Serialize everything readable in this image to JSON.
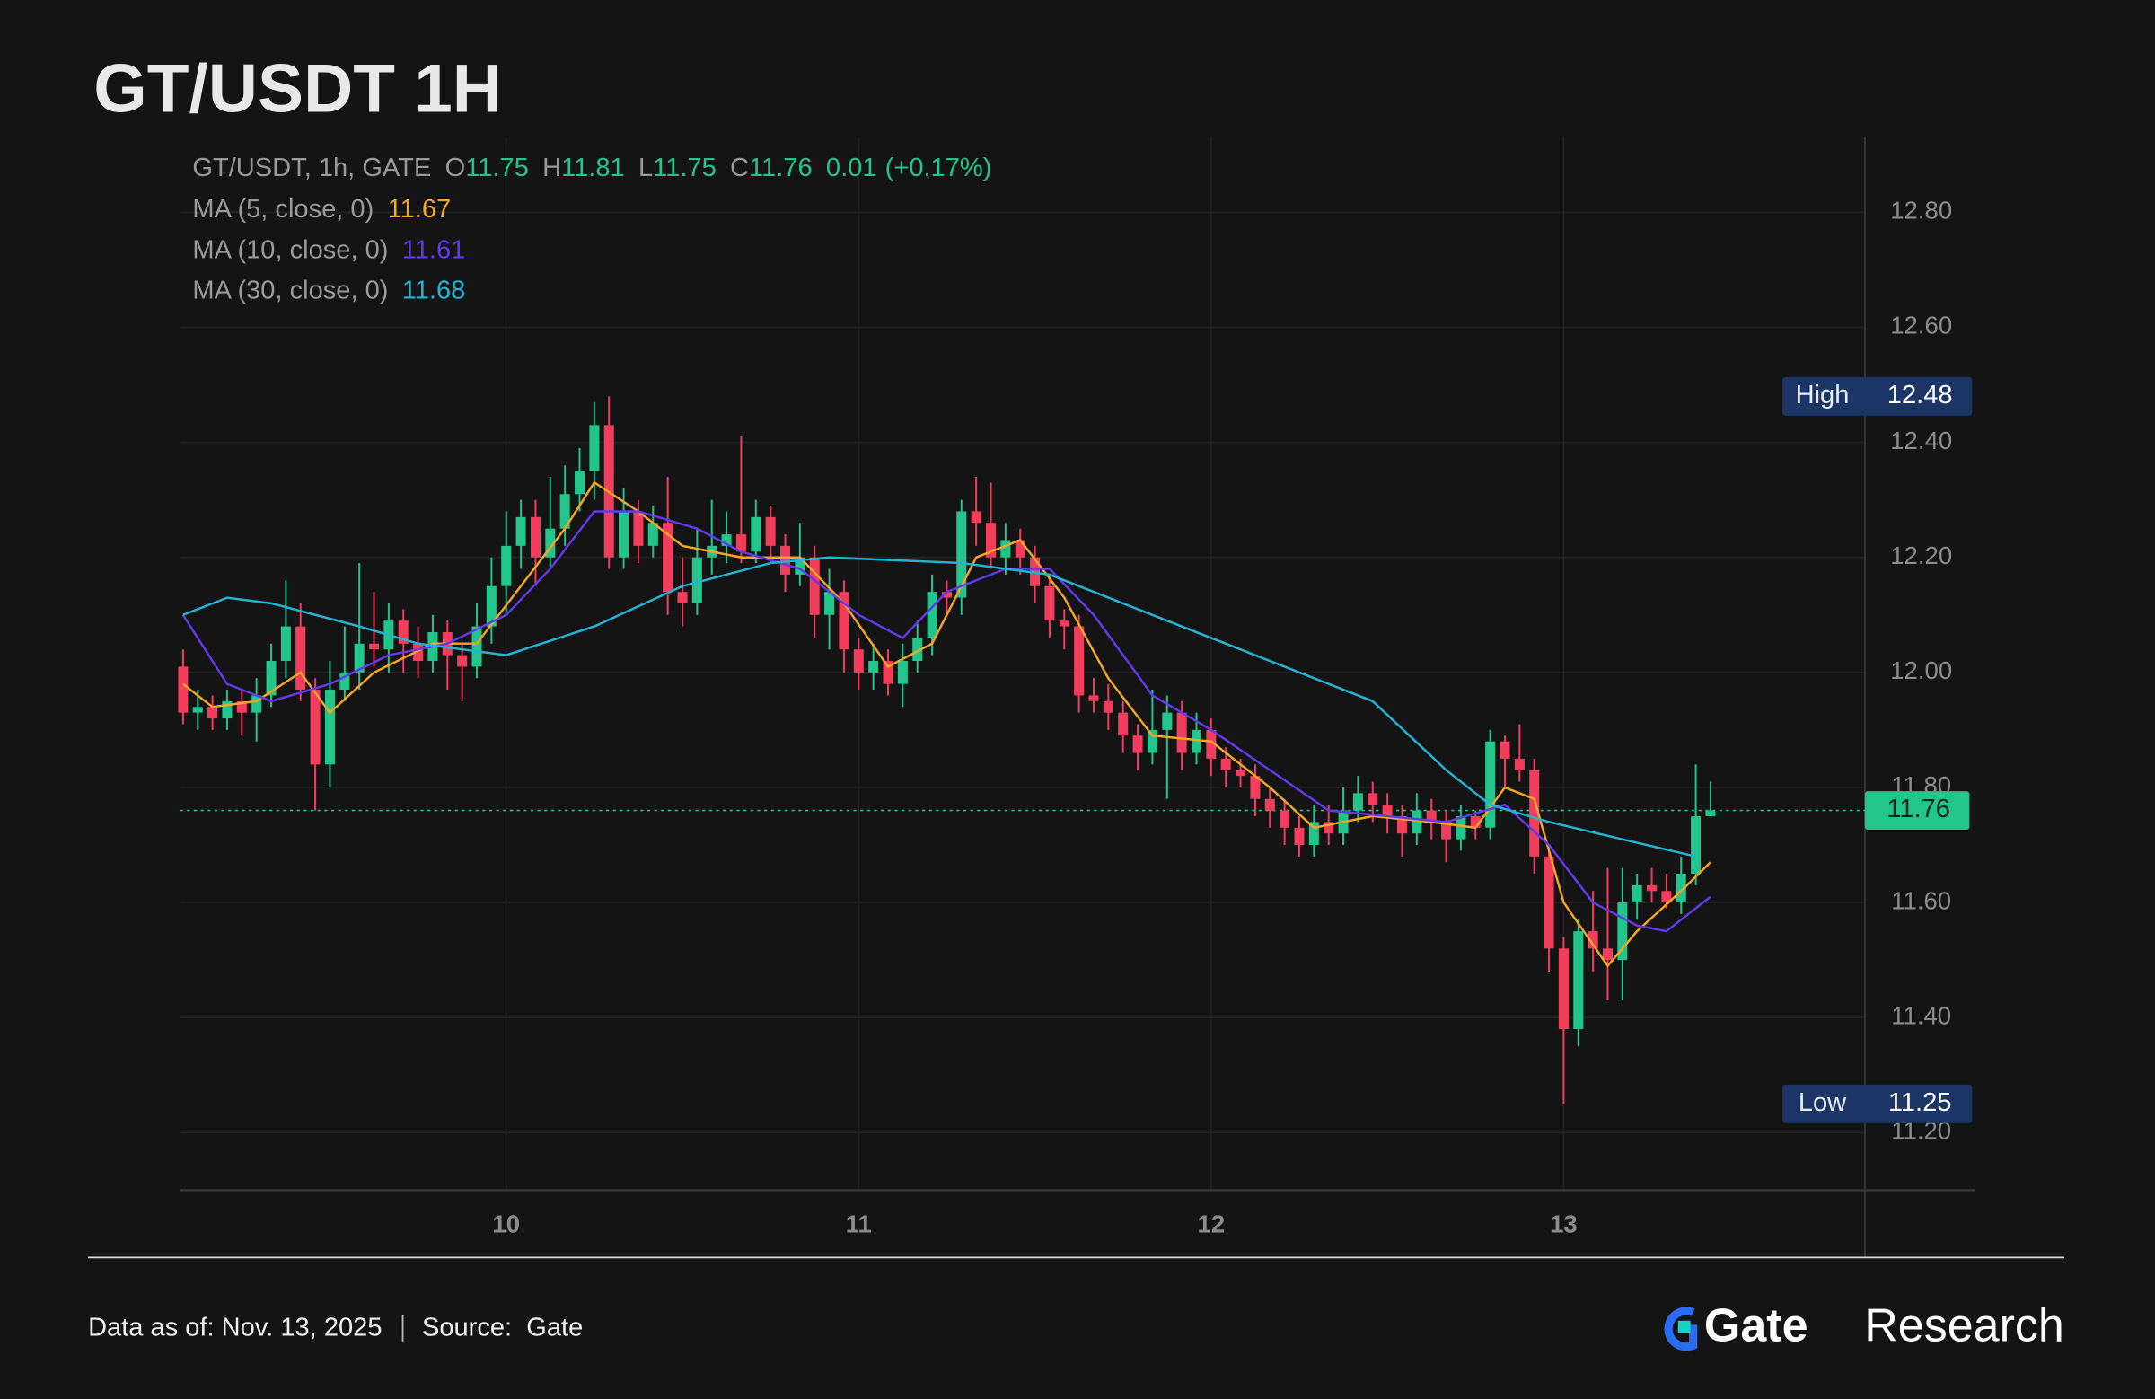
{
  "chart_data": {
    "type": "candlestick",
    "title": "GT/USDT 1H",
    "header": {
      "symbol": "GT/USDT, 1h, GATE",
      "fields": [
        {
          "label": "O",
          "value": 11.75
        },
        {
          "label": "H",
          "value": 11.81
        },
        {
          "label": "L",
          "value": 11.75
        },
        {
          "label": "C",
          "value": 11.76
        }
      ],
      "change": 0.01,
      "change_pct": {
        "value": 0.17,
        "label": "(+0.17%)"
      }
    },
    "up_color": "#22c58b",
    "down_color": "#f23d5c",
    "x": [
      2,
      3,
      4,
      5,
      6,
      7,
      8,
      9,
      10,
      11,
      12,
      13,
      14,
      15,
      16,
      17,
      18,
      19,
      20,
      21,
      22,
      23,
      24,
      25,
      26,
      27,
      28,
      29,
      30,
      31,
      32,
      33,
      34,
      35,
      36,
      37,
      38,
      39,
      40,
      41,
      42,
      43,
      44,
      45,
      46,
      47,
      48,
      49,
      50,
      51,
      52,
      53,
      54,
      55,
      56,
      57,
      58,
      59,
      60,
      61,
      62,
      63,
      64,
      65,
      66,
      67,
      68,
      69,
      70,
      71,
      72,
      73,
      74,
      75,
      76,
      77,
      78,
      79,
      80,
      81,
      82,
      83,
      84,
      85,
      86,
      87,
      88,
      89,
      90,
      91,
      92,
      93,
      94,
      95,
      96,
      97,
      98,
      99,
      100,
      101,
      102,
      103,
      104,
      105,
      106
    ],
    "ohlc": [
      [
        12.01,
        12.04,
        11.91,
        11.93
      ],
      [
        11.93,
        11.97,
        11.9,
        11.94
      ],
      [
        11.94,
        11.96,
        11.9,
        11.92
      ],
      [
        11.92,
        11.97,
        11.9,
        11.95
      ],
      [
        11.95,
        11.97,
        11.89,
        11.93
      ],
      [
        11.93,
        11.99,
        11.88,
        11.96
      ],
      [
        11.96,
        12.05,
        11.94,
        12.02
      ],
      [
        12.02,
        12.16,
        11.99,
        12.08
      ],
      [
        12.08,
        12.12,
        11.95,
        11.97
      ],
      [
        11.97,
        11.99,
        11.76,
        11.84
      ],
      [
        11.84,
        12.02,
        11.8,
        11.97
      ],
      [
        11.97,
        12.08,
        11.95,
        12.0
      ],
      [
        12.0,
        12.19,
        11.97,
        12.05
      ],
      [
        12.05,
        12.14,
        12.01,
        12.04
      ],
      [
        12.04,
        12.12,
        12.0,
        12.09
      ],
      [
        12.09,
        12.11,
        12.0,
        12.05
      ],
      [
        12.05,
        12.08,
        11.99,
        12.02
      ],
      [
        12.02,
        12.1,
        12.0,
        12.07
      ],
      [
        12.07,
        12.09,
        11.97,
        12.03
      ],
      [
        12.03,
        12.05,
        11.95,
        12.01
      ],
      [
        12.01,
        12.12,
        11.99,
        12.08
      ],
      [
        12.08,
        12.2,
        12.05,
        12.15
      ],
      [
        12.15,
        12.28,
        12.1,
        12.22
      ],
      [
        12.22,
        12.3,
        12.18,
        12.27
      ],
      [
        12.27,
        12.3,
        12.15,
        12.2
      ],
      [
        12.2,
        12.34,
        12.18,
        12.25
      ],
      [
        12.25,
        12.36,
        12.22,
        12.31
      ],
      [
        12.31,
        12.39,
        12.28,
        12.35
      ],
      [
        12.35,
        12.47,
        12.3,
        12.43
      ],
      [
        12.43,
        12.48,
        12.18,
        12.2
      ],
      [
        12.2,
        12.32,
        12.18,
        12.28
      ],
      [
        12.28,
        12.3,
        12.19,
        12.22
      ],
      [
        12.22,
        12.29,
        12.2,
        12.26
      ],
      [
        12.26,
        12.34,
        12.1,
        12.14
      ],
      [
        12.14,
        12.2,
        12.08,
        12.12
      ],
      [
        12.12,
        12.25,
        12.1,
        12.2
      ],
      [
        12.2,
        12.3,
        12.17,
        12.22
      ],
      [
        12.22,
        12.28,
        12.19,
        12.24
      ],
      [
        12.24,
        12.41,
        12.19,
        12.21
      ],
      [
        12.21,
        12.3,
        12.19,
        12.27
      ],
      [
        12.27,
        12.29,
        12.19,
        12.22
      ],
      [
        12.22,
        12.24,
        12.14,
        12.17
      ],
      [
        12.17,
        12.26,
        12.15,
        12.2
      ],
      [
        12.2,
        12.22,
        12.06,
        12.1
      ],
      [
        12.1,
        12.18,
        12.04,
        12.14
      ],
      [
        12.14,
        12.16,
        12.0,
        12.04
      ],
      [
        12.04,
        12.06,
        11.97,
        12.0
      ],
      [
        12.0,
        12.05,
        11.97,
        12.02
      ],
      [
        12.02,
        12.04,
        11.96,
        11.98
      ],
      [
        11.98,
        12.05,
        11.94,
        12.02
      ],
      [
        12.02,
        12.09,
        12.0,
        12.06
      ],
      [
        12.06,
        12.17,
        12.03,
        12.14
      ],
      [
        12.14,
        12.16,
        12.1,
        12.13
      ],
      [
        12.13,
        12.3,
        12.1,
        12.28
      ],
      [
        12.28,
        12.34,
        12.22,
        12.26
      ],
      [
        12.26,
        12.33,
        12.18,
        12.2
      ],
      [
        12.2,
        12.26,
        12.17,
        12.23
      ],
      [
        12.23,
        12.25,
        12.17,
        12.2
      ],
      [
        12.2,
        12.22,
        12.12,
        12.15
      ],
      [
        12.15,
        12.17,
        12.06,
        12.09
      ],
      [
        12.09,
        12.11,
        12.04,
        12.08
      ],
      [
        12.08,
        12.1,
        11.93,
        11.96
      ],
      [
        11.96,
        11.99,
        11.93,
        11.95
      ],
      [
        11.95,
        11.98,
        11.9,
        11.93
      ],
      [
        11.93,
        11.95,
        11.86,
        11.89
      ],
      [
        11.89,
        11.91,
        11.83,
        11.86
      ],
      [
        11.86,
        11.97,
        11.84,
        11.9
      ],
      [
        11.9,
        11.96,
        11.78,
        11.93
      ],
      [
        11.93,
        11.95,
        11.83,
        11.86
      ],
      [
        11.86,
        11.93,
        11.84,
        11.9
      ],
      [
        11.9,
        11.92,
        11.82,
        11.85
      ],
      [
        11.85,
        11.87,
        11.8,
        11.83
      ],
      [
        11.83,
        11.85,
        11.8,
        11.82
      ],
      [
        11.82,
        11.84,
        11.75,
        11.78
      ],
      [
        11.78,
        11.8,
        11.73,
        11.76
      ],
      [
        11.76,
        11.78,
        11.7,
        11.73
      ],
      [
        11.73,
        11.75,
        11.68,
        11.7
      ],
      [
        11.7,
        11.77,
        11.68,
        11.74
      ],
      [
        11.74,
        11.77,
        11.7,
        11.72
      ],
      [
        11.72,
        11.8,
        11.7,
        11.76
      ],
      [
        11.76,
        11.82,
        11.74,
        11.79
      ],
      [
        11.79,
        11.81,
        11.74,
        11.77
      ],
      [
        11.77,
        11.79,
        11.72,
        11.75
      ],
      [
        11.75,
        11.77,
        11.68,
        11.72
      ],
      [
        11.72,
        11.79,
        11.7,
        11.76
      ],
      [
        11.76,
        11.78,
        11.71,
        11.74
      ],
      [
        11.74,
        11.76,
        11.67,
        11.71
      ],
      [
        11.71,
        11.77,
        11.69,
        11.75
      ],
      [
        11.75,
        11.76,
        11.71,
        11.73
      ],
      [
        11.73,
        11.9,
        11.71,
        11.88
      ],
      [
        11.88,
        11.89,
        11.8,
        11.85
      ],
      [
        11.85,
        11.91,
        11.81,
        11.83
      ],
      [
        11.83,
        11.85,
        11.65,
        11.68
      ],
      [
        11.68,
        11.7,
        11.48,
        11.52
      ],
      [
        11.52,
        11.54,
        11.25,
        11.38
      ],
      [
        11.38,
        11.57,
        11.35,
        11.55
      ],
      [
        11.55,
        11.62,
        11.48,
        11.52
      ],
      [
        11.52,
        11.66,
        11.43,
        11.5
      ],
      [
        11.5,
        11.66,
        11.43,
        11.6
      ],
      [
        11.6,
        11.65,
        11.57,
        11.63
      ],
      [
        11.63,
        11.66,
        11.6,
        11.62
      ],
      [
        11.62,
        11.65,
        11.59,
        11.6
      ],
      [
        11.6,
        11.68,
        11.58,
        11.65
      ],
      [
        11.65,
        11.84,
        11.63,
        11.75
      ],
      [
        11.75,
        11.81,
        11.75,
        11.76
      ]
    ],
    "series": [
      {
        "name": "MA (5, close, 0)",
        "color": "#f5a623",
        "current": 11.67,
        "x": [
          2,
          4,
          7,
          10,
          12,
          15,
          19,
          22,
          25,
          28,
          30,
          33,
          36,
          40,
          44,
          47,
          50,
          53,
          56,
          59,
          62,
          65,
          68,
          72,
          76,
          79,
          83,
          87,
          90,
          92,
          94,
          96,
          99,
          101,
          104,
          106
        ],
        "values": [
          11.98,
          11.94,
          11.95,
          12.0,
          11.93,
          12.0,
          12.05,
          12.05,
          12.15,
          12.25,
          12.33,
          12.28,
          12.22,
          12.2,
          12.2,
          12.12,
          12.01,
          12.05,
          12.2,
          12.23,
          12.13,
          11.99,
          11.89,
          11.88,
          11.8,
          11.73,
          11.75,
          11.74,
          11.73,
          11.8,
          11.78,
          11.6,
          11.49,
          11.55,
          11.62,
          11.67
        ]
      },
      {
        "name": "MA (10, close, 0)",
        "color": "#6339ea",
        "current": 11.61,
        "x": [
          2,
          5,
          8,
          12,
          16,
          20,
          24,
          27,
          30,
          33,
          37,
          40,
          44,
          48,
          51,
          54,
          58,
          61,
          64,
          68,
          72,
          76,
          80,
          84,
          88,
          92,
          95,
          98,
          101,
          103,
          106
        ],
        "values": [
          12.1,
          11.98,
          11.95,
          11.98,
          12.03,
          12.05,
          12.1,
          12.18,
          12.28,
          12.28,
          12.25,
          12.21,
          12.18,
          12.1,
          12.06,
          12.14,
          12.18,
          12.18,
          12.1,
          11.96,
          11.9,
          11.83,
          11.76,
          11.75,
          11.74,
          11.77,
          11.7,
          11.6,
          11.56,
          11.55,
          11.61
        ]
      },
      {
        "name": "MA (30, close, 0)",
        "color": "#22b5d3",
        "current": 11.68,
        "x": [
          2,
          5,
          8,
          14,
          18,
          24,
          30,
          36,
          42,
          46,
          55,
          61,
          64,
          72,
          79,
          83,
          88,
          91,
          95,
          100,
          105
        ],
        "values": [
          12.1,
          12.13,
          12.12,
          12.08,
          12.05,
          12.03,
          12.08,
          12.15,
          12.19,
          12.2,
          12.19,
          12.17,
          12.14,
          12.06,
          11.99,
          11.95,
          11.83,
          11.77,
          11.74,
          11.71,
          11.68
        ]
      }
    ],
    "last_price": 11.76,
    "high": {
      "label": "High",
      "value": 12.48
    },
    "low": {
      "label": "Low",
      "value": 11.25
    },
    "xlim": [
      1.8,
      124
    ],
    "xticks": [
      {
        "value": 24,
        "label": "10"
      },
      {
        "value": 48,
        "label": "11"
      },
      {
        "value": 72,
        "label": "12"
      },
      {
        "value": 96,
        "label": "13"
      }
    ],
    "ylim": [
      11.1,
      12.93
    ],
    "yticks": [
      {
        "value": 11.2,
        "label": "11.20"
      },
      {
        "value": 11.4,
        "label": "11.40"
      },
      {
        "value": 11.6,
        "label": "11.60"
      },
      {
        "value": 11.8,
        "label": "11.80"
      },
      {
        "value": 12.0,
        "label": "12.00"
      },
      {
        "value": 12.2,
        "label": "12.20"
      },
      {
        "value": 12.4,
        "label": "12.40"
      },
      {
        "value": 12.6,
        "label": "12.60"
      },
      {
        "value": 12.8,
        "label": "12.80"
      }
    ],
    "grid": true
  },
  "footer": {
    "as_of": "Data as of: Nov. 13, 2025",
    "source": "Source:  Gate",
    "brand": "Gate",
    "brand_suffix": "Research"
  }
}
